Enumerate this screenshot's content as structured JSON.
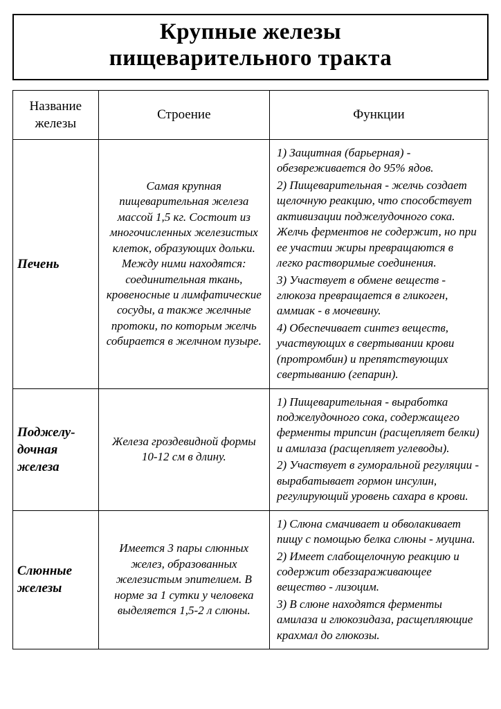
{
  "title_line1": "Крупные железы",
  "title_line2": "пищеварительного тракта",
  "headers": {
    "col1": "Название железы",
    "col2": "Строение",
    "col3": "Функции"
  },
  "rows": [
    {
      "name": "Печень",
      "structure": "Самая крупная пищеварительная железа массой 1,5 кг. Состоит из многочисленных железистых клеток, образующих дольки. Между ними находятся: соединительная ткань, кровеносные и лимфатические сосуды, а также желчные протоки, по которым желчь собирается в желчном пузыре.",
      "functions": [
        "1) Защитная (барьерная) - обезвреживается до 95% ядов.",
        "2) Пищеварительная - желчь создает щелочную реакцию, что способствует активизации поджелудочного сока. Желчь ферментов не содержит, но при ее участии жиры превращаются в легко растворимые соединения.",
        "3) Участвует в обмене веществ - глюкоза превращается в гликоген, аммиак - в мочевину.",
        "4) Обеспечивает синтез веществ, участвующих в свертывании крови (протромбин) и препятствующих свертыванию (гепарин)."
      ]
    },
    {
      "name": "Поджелу­дочная железа",
      "structure": "Железа гроздевидной формы 10-12 см в длину.",
      "functions": [
        "1) Пищеварительная - выработка поджелудочного сока, содержащего ферменты трипсин (расщепляет белки) и амилаза (расщепляет углеводы).",
        "2) Участвует в гуморальной регуляции - вырабатывает гормон инсулин, регулирующий уровень сахара в крови."
      ]
    },
    {
      "name": "Слюнные железы",
      "structure": "Имеется 3 пары слюнных желез, образованных железистым эпителием. В норме за 1 сутки у человека выделяется 1,5-2 л слюны.",
      "functions": [
        "1) Слюна смачивает и обволакивает пищу с помощью белка слюны - муцина.",
        "2) Имеет слабощелочную реакцию и содержит обеззараживающее вещество - лизоцим.",
        "3) В слюне находятся ферменты амилаза и глюкозидаза, расщепляющие крахмал до глюкозы."
      ]
    }
  ]
}
